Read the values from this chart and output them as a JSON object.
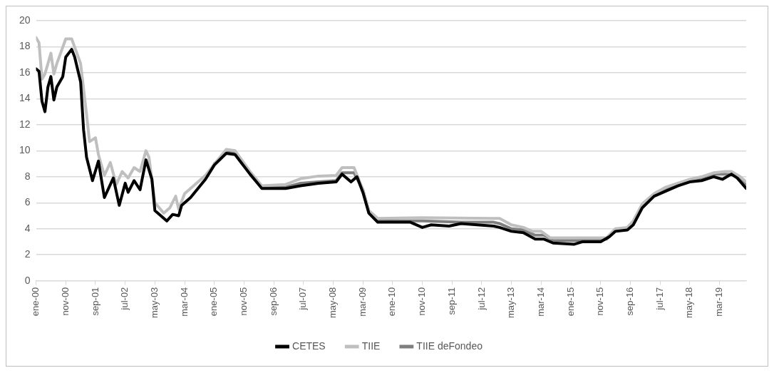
{
  "chart_data": {
    "type": "line",
    "xlim": [
      "2000-01",
      "2019-12"
    ],
    "xticks": [
      {
        "value": "2000-01",
        "label": "ene-00"
      },
      {
        "value": "2000-11",
        "label": "nov-00"
      },
      {
        "value": "2001-09",
        "label": "sep-01"
      },
      {
        "value": "2002-07",
        "label": "jul-02"
      },
      {
        "value": "2003-05",
        "label": "may-03"
      },
      {
        "value": "2004-03",
        "label": "mar-04"
      },
      {
        "value": "2005-01",
        "label": "ene-05"
      },
      {
        "value": "2005-11",
        "label": "nov-05"
      },
      {
        "value": "2006-09",
        "label": "sep-06"
      },
      {
        "value": "2007-07",
        "label": "jul-07"
      },
      {
        "value": "2008-05",
        "label": "may-08"
      },
      {
        "value": "2009-03",
        "label": "mar-09"
      },
      {
        "value": "2010-01",
        "label": "ene-10"
      },
      {
        "value": "2010-11",
        "label": "nov-10"
      },
      {
        "value": "2011-09",
        "label": "sep-11"
      },
      {
        "value": "2012-07",
        "label": "jul-12"
      },
      {
        "value": "2013-05",
        "label": "may-13"
      },
      {
        "value": "2014-03",
        "label": "mar-14"
      },
      {
        "value": "2015-01",
        "label": "ene-15"
      },
      {
        "value": "2015-11",
        "label": "nov-15"
      },
      {
        "value": "2016-09",
        "label": "sep-16"
      },
      {
        "value": "2017-07",
        "label": "jul-17"
      },
      {
        "value": "2018-05",
        "label": "may-18"
      },
      {
        "value": "2019-03",
        "label": "mar-19"
      }
    ],
    "ylim": [
      0,
      20
    ],
    "yticks": [
      0,
      2,
      4,
      6,
      8,
      10,
      12,
      14,
      16,
      18,
      20
    ],
    "grid": "y",
    "legend": "bottom",
    "marker": "none",
    "line_style": "solid",
    "series": [
      {
        "name": "CETES",
        "color": "#000000",
        "x": [
          "2000-01",
          "2000-02",
          "2000-03",
          "2000-04",
          "2000-05",
          "2000-06",
          "2000-07",
          "2000-08",
          "2000-10",
          "2000-11",
          "2001-01",
          "2001-02",
          "2001-04",
          "2001-05",
          "2001-06",
          "2001-08",
          "2001-10",
          "2001-12",
          "2002-03",
          "2002-05",
          "2002-07",
          "2002-08",
          "2002-10",
          "2002-12",
          "2003-02",
          "2003-04",
          "2003-05",
          "2003-07",
          "2003-09",
          "2003-11",
          "2004-01",
          "2004-02",
          "2004-05",
          "2004-10",
          "2005-01",
          "2005-05",
          "2005-08",
          "2005-10",
          "2006-01",
          "2006-05",
          "2007-01",
          "2007-06",
          "2007-12",
          "2008-06",
          "2008-08",
          "2008-11",
          "2009-01",
          "2009-03",
          "2009-05",
          "2009-08",
          "2010-07",
          "2010-11",
          "2011-02",
          "2011-08",
          "2011-12",
          "2012-11",
          "2013-01",
          "2013-05",
          "2013-09",
          "2014-01",
          "2014-04",
          "2014-07",
          "2015-02",
          "2015-05",
          "2015-11",
          "2016-02",
          "2016-04",
          "2016-08",
          "2016-10",
          "2017-01",
          "2017-05",
          "2017-09",
          "2018-01",
          "2018-05",
          "2018-09",
          "2019-01",
          "2019-04",
          "2019-07",
          "2019-09",
          "2019-12"
        ],
        "values": [
          16.3,
          16.1,
          13.8,
          13.0,
          14.9,
          15.7,
          13.9,
          14.9,
          15.7,
          17.2,
          17.8,
          17.2,
          15.3,
          11.6,
          9.5,
          7.7,
          9.2,
          6.4,
          7.9,
          5.8,
          7.5,
          6.8,
          7.7,
          7.0,
          9.3,
          7.8,
          5.4,
          5.0,
          4.6,
          5.1,
          5.0,
          5.8,
          6.4,
          7.8,
          8.9,
          9.8,
          9.7,
          9.1,
          8.2,
          7.1,
          7.1,
          7.3,
          7.5,
          7.6,
          8.2,
          7.6,
          8.0,
          6.8,
          5.2,
          4.5,
          4.5,
          4.1,
          4.3,
          4.2,
          4.4,
          4.2,
          4.1,
          3.8,
          3.7,
          3.2,
          3.2,
          2.9,
          2.8,
          3.0,
          3.0,
          3.4,
          3.8,
          3.9,
          4.3,
          5.6,
          6.5,
          6.9,
          7.3,
          7.6,
          7.7,
          8.0,
          7.8,
          8.2,
          7.9,
          7.1
        ]
      },
      {
        "name": "TIIE",
        "color": "#bfbfbf",
        "x": [
          "2000-01",
          "2000-02",
          "2000-03",
          "2000-04",
          "2000-06",
          "2000-07",
          "2000-08",
          "2000-11",
          "2001-01",
          "2001-04",
          "2001-06",
          "2001-07",
          "2001-09",
          "2001-10",
          "2001-12",
          "2002-02",
          "2002-04",
          "2002-06",
          "2002-08",
          "2002-10",
          "2002-12",
          "2003-02",
          "2003-03",
          "2003-05",
          "2003-08",
          "2003-10",
          "2003-12",
          "2004-01",
          "2004-03",
          "2004-10",
          "2005-05",
          "2005-08",
          "2006-01",
          "2006-05",
          "2007-01",
          "2007-06",
          "2007-12",
          "2008-06",
          "2008-08",
          "2008-12",
          "2009-03",
          "2009-05",
          "2009-08",
          "2010-11",
          "2012-11",
          "2013-01",
          "2013-05",
          "2013-09",
          "2013-12",
          "2014-03",
          "2014-06",
          "2015-04",
          "2016-01",
          "2016-04",
          "2016-08",
          "2016-10",
          "2017-01",
          "2017-05",
          "2017-09",
          "2018-01",
          "2018-05",
          "2018-09",
          "2019-01",
          "2019-05",
          "2019-07",
          "2019-10",
          "2019-12"
        ],
        "values": [
          18.7,
          18.3,
          15.5,
          15.9,
          17.5,
          15.9,
          16.7,
          18.6,
          18.6,
          16.7,
          12.8,
          10.7,
          11.0,
          9.7,
          8.1,
          9.1,
          7.4,
          8.4,
          7.9,
          8.7,
          8.4,
          10.0,
          9.5,
          6.0,
          5.2,
          5.6,
          6.5,
          5.5,
          6.7,
          8.1,
          10.1,
          10.0,
          8.4,
          7.3,
          7.4,
          7.85,
          8.05,
          8.1,
          8.7,
          8.7,
          7.0,
          5.4,
          4.8,
          4.85,
          4.8,
          4.8,
          4.3,
          4.1,
          3.8,
          3.8,
          3.3,
          3.3,
          3.3,
          4.0,
          4.1,
          4.6,
          5.9,
          6.7,
          7.2,
          7.5,
          7.8,
          8.0,
          8.3,
          8.4,
          8.4,
          8.0,
          7.6
        ]
      },
      {
        "name": "TIIE deFondeo",
        "color": "#7f7f7f",
        "x": [
          "2005-01",
          "2005-05",
          "2005-08",
          "2006-01",
          "2006-05",
          "2007-01",
          "2007-06",
          "2007-12",
          "2008-06",
          "2008-08",
          "2008-12",
          "2009-03",
          "2009-05",
          "2009-08",
          "2010-11",
          "2011-12",
          "2012-11",
          "2013-01",
          "2013-05",
          "2013-09",
          "2014-01",
          "2014-04",
          "2014-07",
          "2015-04",
          "2016-01",
          "2016-04",
          "2016-08",
          "2016-10",
          "2017-01",
          "2017-05",
          "2017-09",
          "2018-01",
          "2018-05",
          "2018-09",
          "2019-01",
          "2019-05",
          "2019-09",
          "2019-12"
        ],
        "values": [
          9.0,
          9.9,
          9.8,
          8.3,
          7.2,
          7.2,
          7.5,
          7.6,
          7.7,
          8.3,
          8.3,
          7.0,
          5.3,
          4.6,
          4.6,
          4.5,
          4.5,
          4.4,
          4.0,
          3.9,
          3.5,
          3.5,
          3.1,
          3.1,
          3.2,
          3.9,
          4.0,
          4.5,
          5.8,
          6.6,
          7.1,
          7.4,
          7.7,
          7.9,
          8.2,
          8.2,
          8.1,
          7.4
        ]
      }
    ]
  }
}
